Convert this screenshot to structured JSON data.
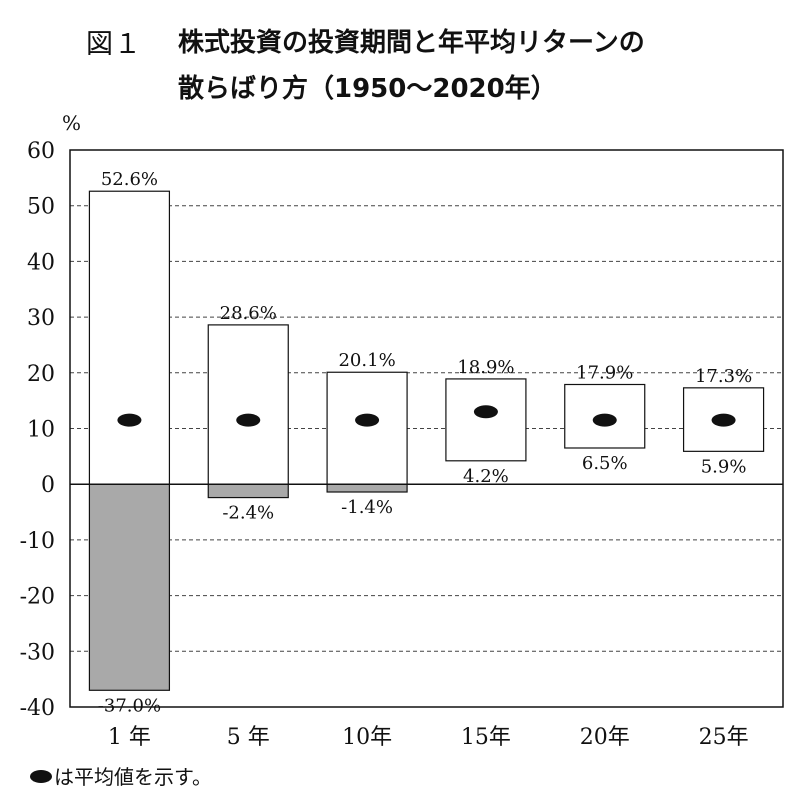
{
  "title": {
    "figure_label": "図１",
    "line1": "株式投資の投資期間と年平均リターンの",
    "line2": "散らばり方（1950〜2020年）"
  },
  "legend": {
    "text": "は平均値を示す。"
  },
  "chart_data": {
    "type": "bar",
    "subtype": "floating-range",
    "yunit": "%",
    "ylim": [
      -40,
      60
    ],
    "yticks": [
      60,
      50,
      40,
      30,
      20,
      10,
      0,
      -10,
      -20,
      -30,
      -40
    ],
    "categories": [
      "1 年",
      "5 年",
      "10年",
      "15年",
      "20年",
      "25年"
    ],
    "max": [
      52.6,
      28.6,
      20.1,
      18.9,
      17.9,
      17.3
    ],
    "min": [
      -37.0,
      -2.4,
      -1.4,
      4.2,
      6.5,
      5.9
    ],
    "mean": [
      11.5,
      11.5,
      11.5,
      13.0,
      11.5,
      11.5
    ],
    "max_labels": [
      "52.6%",
      "28.6%",
      "20.1%",
      "18.9%",
      "17.9%",
      "17.3%"
    ],
    "min_labels": [
      "-37.0%",
      "-2.4%",
      "-1.4%",
      "4.2%",
      "6.5%",
      "5.9%"
    ],
    "grid": true,
    "negative_fill": "#a9a9a9",
    "positive_fill": "#ffffff",
    "mean_marker_color": "#111111"
  }
}
